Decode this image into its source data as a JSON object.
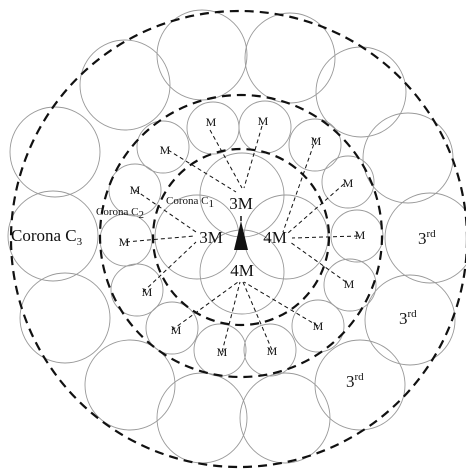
{
  "diagram": {
    "corona_labels": {
      "c1": {
        "text": "Corona C",
        "sub": "1"
      },
      "c2": {
        "text": "Corona C",
        "sub": "2"
      },
      "c3": {
        "text": "Corona C",
        "sub": "3"
      }
    },
    "center_labels": {
      "top": "3M",
      "left": "3M",
      "right": "4M",
      "bottom": "4M"
    },
    "device_label": "M",
    "third_label": {
      "base": "3",
      "sup": "rd"
    }
  }
}
